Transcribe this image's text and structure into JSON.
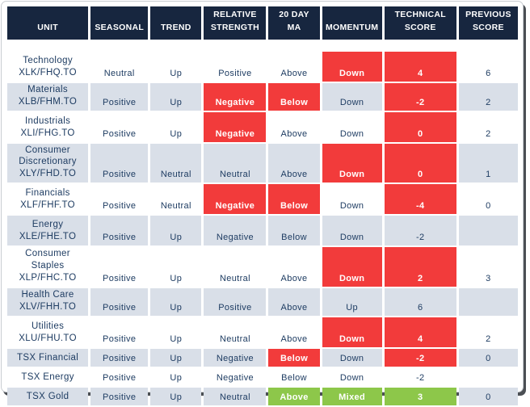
{
  "colors": {
    "header_bg": "#17263f",
    "row_alt": "#d9dfe8",
    "negative": "#f23b3b",
    "positive_green": "#8dc74a",
    "text": "#1e3c62",
    "header_text": "#ffffff"
  },
  "chart_data": {
    "type": "table",
    "columns": [
      {
        "key": "unit",
        "label": "UNIT"
      },
      {
        "key": "seasonal",
        "label": "SEASONAL"
      },
      {
        "key": "trend",
        "label": "TREND"
      },
      {
        "key": "rel_strength",
        "label": "RELATIVE\nSTRENGTH"
      },
      {
        "key": "ma20",
        "label": "20 DAY\nMA"
      },
      {
        "key": "momentum",
        "label": "MOMENTUM"
      },
      {
        "key": "tech_score",
        "label": "TECHNICAL\nSCORE"
      },
      {
        "key": "prev_score",
        "label": "PREVIOUS\nSCORE"
      }
    ],
    "rows": [
      {
        "size": "m",
        "unit": "Technology\nXLK/FHQ.TO",
        "seasonal": {
          "text": "Neutral"
        },
        "trend": {
          "text": "Up"
        },
        "rel_strength": {
          "text": "Positive"
        },
        "ma20": {
          "text": "Above"
        },
        "momentum": {
          "text": "Down",
          "fill": "red"
        },
        "tech_score": {
          "text": "4",
          "fill": "red"
        },
        "prev_score": {
          "text": "6"
        }
      },
      {
        "size": "s",
        "unit": "Materials\nXLB/FHM.TO",
        "seasonal": {
          "text": "Positive"
        },
        "trend": {
          "text": "Up"
        },
        "rel_strength": {
          "text": "Negative",
          "fill": "red"
        },
        "ma20": {
          "text": "Below",
          "fill": "red"
        },
        "momentum": {
          "text": "Down"
        },
        "tech_score": {
          "text": "-2",
          "fill": "red"
        },
        "prev_score": {
          "text": "2"
        }
      },
      {
        "size": "m",
        "unit": "Industrials\nXLI/FHG.TO",
        "seasonal": {
          "text": "Positive"
        },
        "trend": {
          "text": "Up"
        },
        "rel_strength": {
          "text": "Negative",
          "fill": "red"
        },
        "ma20": {
          "text": "Above"
        },
        "momentum": {
          "text": "Down"
        },
        "tech_score": {
          "text": "0",
          "fill": "red"
        },
        "prev_score": {
          "text": "2"
        }
      },
      {
        "size": "l",
        "unit": "Consumer\nDiscretionary\nXLY/FHD.TO",
        "seasonal": {
          "text": "Positive"
        },
        "trend": {
          "text": "Neutral"
        },
        "rel_strength": {
          "text": "Neutral"
        },
        "ma20": {
          "text": "Above"
        },
        "momentum": {
          "text": "Down",
          "fill": "red"
        },
        "tech_score": {
          "text": "0",
          "fill": "red"
        },
        "prev_score": {
          "text": "1"
        }
      },
      {
        "size": "m",
        "unit": "Financials\nXLF/FHF.TO",
        "seasonal": {
          "text": "Positive"
        },
        "trend": {
          "text": "Neutral"
        },
        "rel_strength": {
          "text": "Negative",
          "fill": "red"
        },
        "ma20": {
          "text": "Below",
          "fill": "red"
        },
        "momentum": {
          "text": "Down"
        },
        "tech_score": {
          "text": "-4",
          "fill": "red"
        },
        "prev_score": {
          "text": "0"
        }
      },
      {
        "size": "m",
        "unit": "Energy\nXLE/FHE.TO",
        "seasonal": {
          "text": "Positive"
        },
        "trend": {
          "text": "Up"
        },
        "rel_strength": {
          "text": "Negative"
        },
        "ma20": {
          "text": "Below"
        },
        "momentum": {
          "text": "Down"
        },
        "tech_score": {
          "text": "-2"
        },
        "prev_score": {
          "text": ""
        }
      },
      {
        "size": "l",
        "unit": "Consumer Staples\nXLP/FHC.TO",
        "seasonal": {
          "text": "Positive"
        },
        "trend": {
          "text": "Up"
        },
        "rel_strength": {
          "text": "Neutral"
        },
        "ma20": {
          "text": "Above"
        },
        "momentum": {
          "text": "Down",
          "fill": "red"
        },
        "tech_score": {
          "text": "2",
          "fill": "red"
        },
        "prev_score": {
          "text": "3"
        }
      },
      {
        "size": "s",
        "unit": "Health Care\nXLV/FHH.TO",
        "seasonal": {
          "text": "Positive"
        },
        "trend": {
          "text": "Up"
        },
        "rel_strength": {
          "text": "Positive"
        },
        "ma20": {
          "text": "Above"
        },
        "momentum": {
          "text": "Up"
        },
        "tech_score": {
          "text": "6"
        },
        "prev_score": {
          "text": ""
        }
      },
      {
        "size": "m",
        "unit": "Utilities\nXLU/FHU.TO",
        "seasonal": {
          "text": "Positive"
        },
        "trend": {
          "text": "Up"
        },
        "rel_strength": {
          "text": "Neutral"
        },
        "ma20": {
          "text": "Above"
        },
        "momentum": {
          "text": "Down",
          "fill": "red"
        },
        "tech_score": {
          "text": "4",
          "fill": "red"
        },
        "prev_score": {
          "text": "2"
        }
      },
      {
        "size": "c",
        "unit": "TSX Financial",
        "seasonal": {
          "text": "Positive"
        },
        "trend": {
          "text": "Up"
        },
        "rel_strength": {
          "text": "Negative"
        },
        "ma20": {
          "text": "Below",
          "fill": "red"
        },
        "momentum": {
          "text": "Down"
        },
        "tech_score": {
          "text": "-2",
          "fill": "red"
        },
        "prev_score": {
          "text": "0"
        }
      },
      {
        "size": "c",
        "unit": "TSX Energy",
        "seasonal": {
          "text": "Positive"
        },
        "trend": {
          "text": "Up"
        },
        "rel_strength": {
          "text": "Negative"
        },
        "ma20": {
          "text": "Below"
        },
        "momentum": {
          "text": "Down"
        },
        "tech_score": {
          "text": "-2"
        },
        "prev_score": {
          "text": ""
        }
      },
      {
        "size": "c",
        "unit": "TSX Gold",
        "seasonal": {
          "text": "Positive"
        },
        "trend": {
          "text": "Up"
        },
        "rel_strength": {
          "text": "Neutral"
        },
        "ma20": {
          "text": "Above",
          "fill": "green"
        },
        "momentum": {
          "text": "Mixed",
          "fill": "green"
        },
        "tech_score": {
          "text": "3",
          "fill": "green"
        },
        "prev_score": {
          "text": "0"
        }
      }
    ]
  }
}
